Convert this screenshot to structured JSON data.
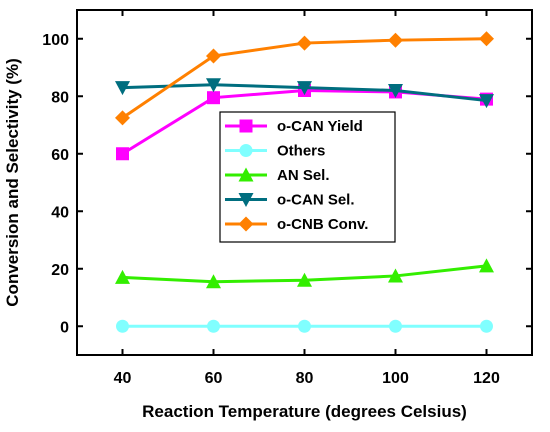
{
  "chart_data": {
    "type": "line",
    "x": [
      40,
      60,
      80,
      100,
      120
    ],
    "xlabel": "Reaction Temperature (degrees Celsius)",
    "ylabel": "Conversion and Selectivity (%)",
    "xlim": [
      30,
      130
    ],
    "ylim": [
      -10,
      110
    ],
    "xticks": [
      40,
      60,
      80,
      100,
      120
    ],
    "yticks": [
      0,
      20,
      40,
      60,
      80,
      100
    ],
    "legend_position": "center-right",
    "grid": false,
    "series": [
      {
        "name": "o-CAN Yield",
        "values": [
          60,
          79.5,
          82,
          81.5,
          79
        ],
        "color": "#ff00ff",
        "marker": "square"
      },
      {
        "name": "Others",
        "values": [
          0,
          0,
          0,
          0,
          0
        ],
        "color": "#80ffff",
        "marker": "circle"
      },
      {
        "name": "AN Sel.",
        "values": [
          17,
          15.5,
          16,
          17.5,
          21
        ],
        "color": "#33ee00",
        "marker": "triangle-up"
      },
      {
        "name": "o-CAN Sel.",
        "values": [
          83,
          84,
          83,
          82,
          78.5
        ],
        "color": "#006e7f",
        "marker": "triangle-down"
      },
      {
        "name": "o-CNB Conv.",
        "values": [
          72.5,
          94,
          98.5,
          99.5,
          100
        ],
        "color": "#ff8000",
        "marker": "diamond"
      }
    ],
    "draw_order": [
      1,
      2,
      0,
      3,
      4
    ]
  }
}
